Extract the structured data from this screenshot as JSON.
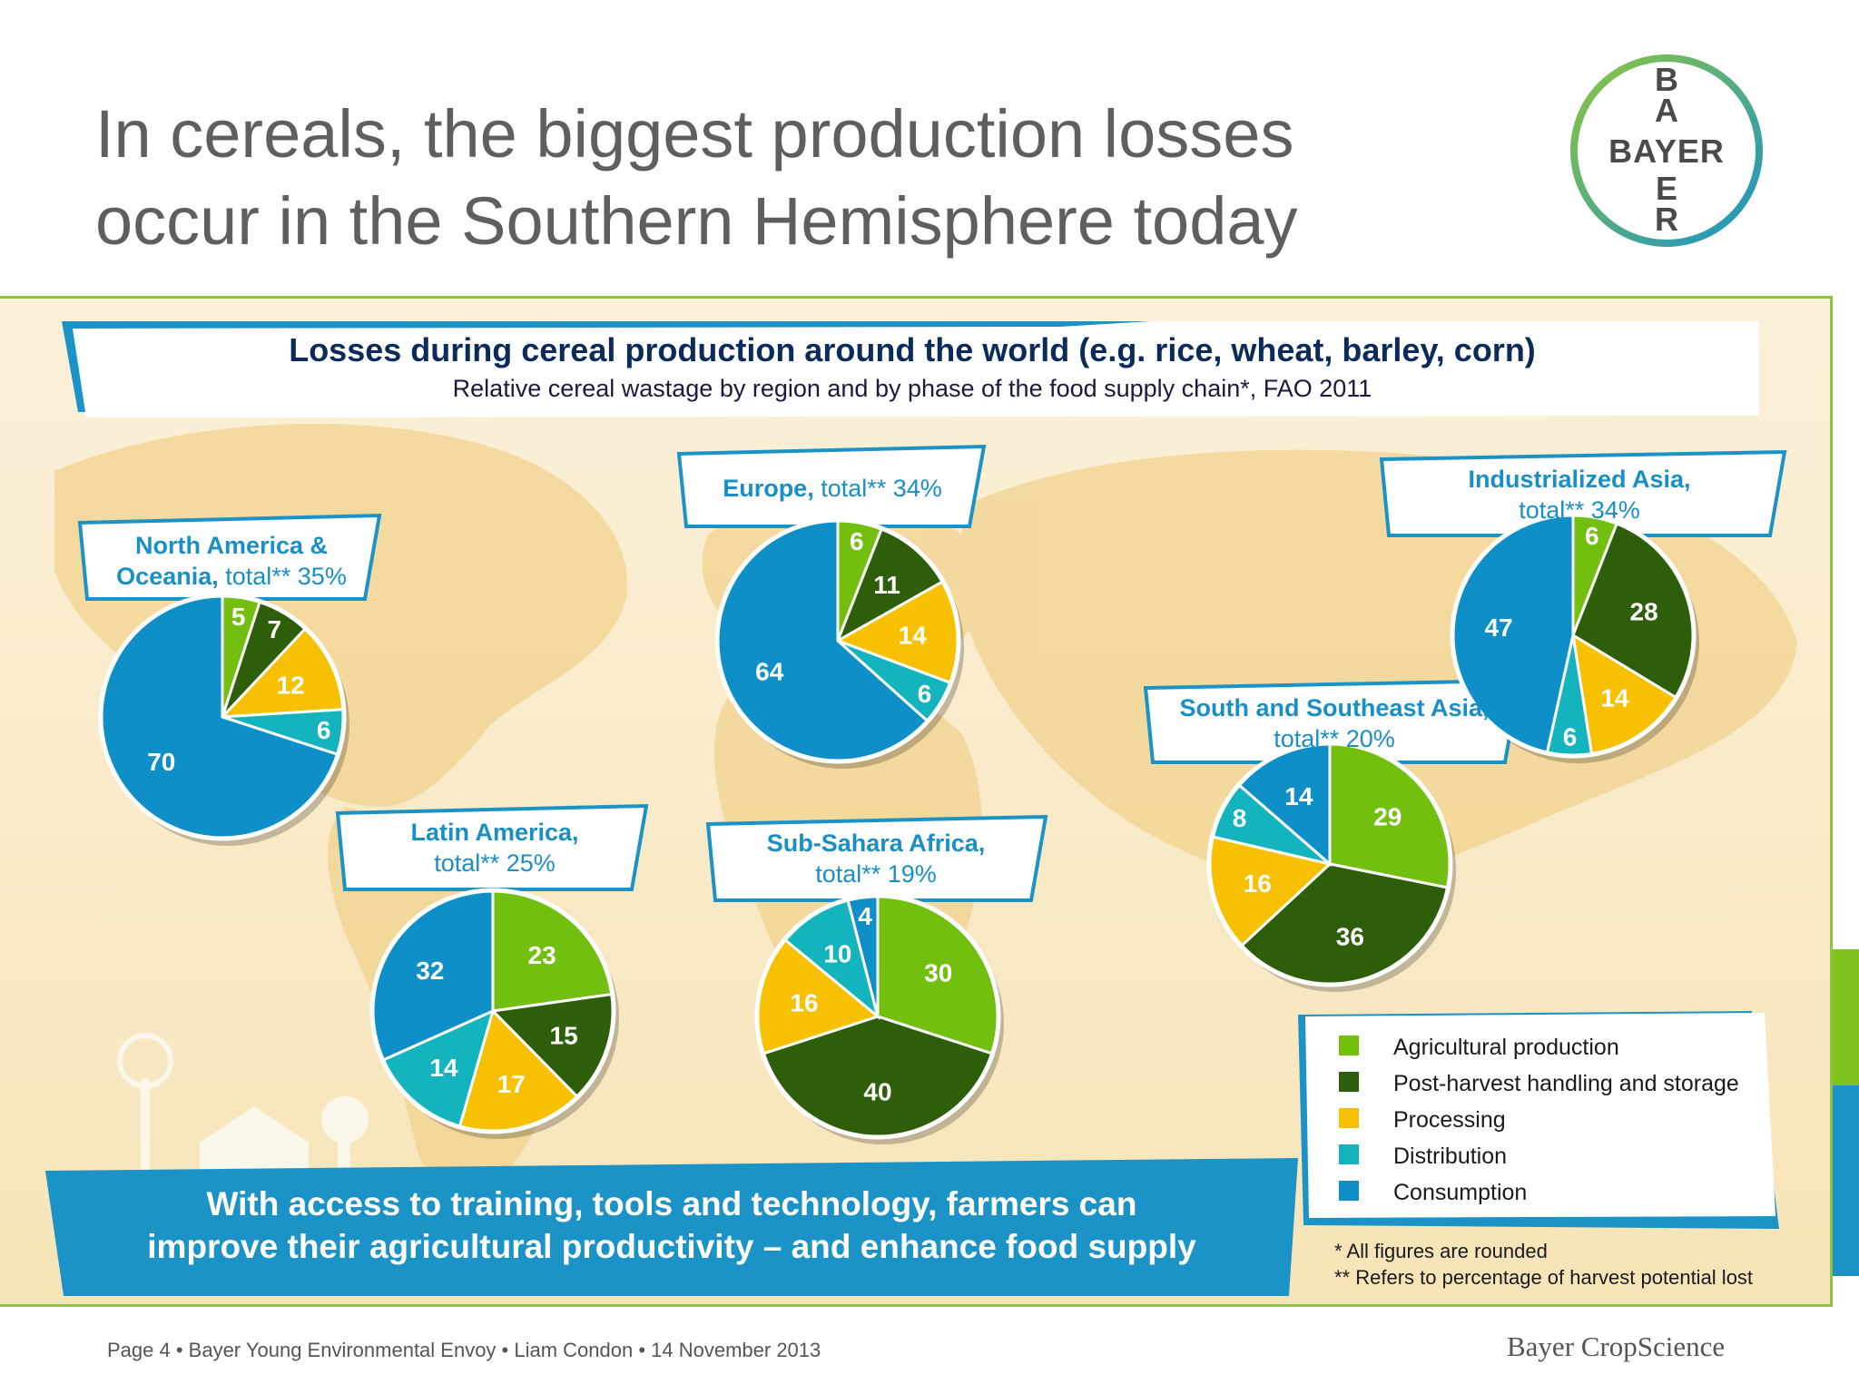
{
  "slide_title_line1": "In cereals, the biggest production losses",
  "slide_title_line2": "occur in the Southern Hemisphere today",
  "logo_text": "BAYER",
  "chart_data": {
    "type": "pie",
    "title": "Losses during cereal production around the world (e.g. rice, wheat, barley, corn)",
    "subtitle": "Relative cereal wastage by region and by phase of the food supply chain*, FAO 2011",
    "categories": [
      "Agricultural production",
      "Post-harvest handling and storage",
      "Processing",
      "Distribution",
      "Consumption"
    ],
    "colors": [
      "#72bf10",
      "#2e5e0a",
      "#f7c000",
      "#14b4bf",
      "#0e8fc8"
    ],
    "regions": [
      {
        "name": "North America &",
        "name2": "Oceania,",
        "total": " total** 35%",
        "values": [
          5,
          7,
          12,
          6,
          70
        ]
      },
      {
        "name": "Europe,",
        "name2": "",
        "total": " total** 34%",
        "values": [
          6,
          11,
          14,
          6,
          64
        ]
      },
      {
        "name": "Industrialized Asia,",
        "name2": "",
        "total": "total** 34%",
        "values": [
          6,
          28,
          14,
          6,
          47
        ]
      },
      {
        "name": "South and Southeast Asia,",
        "name2": "",
        "total": "total** 20%",
        "values": [
          29,
          36,
          16,
          8,
          14
        ]
      },
      {
        "name": "Latin America,",
        "name2": "",
        "total": "total** 25%",
        "values": [
          23,
          15,
          17,
          14,
          32
        ]
      },
      {
        "name": "Sub-Sahara Africa,",
        "name2": "",
        "total": "total** 19%",
        "values": [
          30,
          40,
          16,
          10,
          4
        ]
      }
    ]
  },
  "bottom_banner": {
    "line1": "With access to training, tools and technology, farmers can",
    "line2": "improve their agricultural productivity – and enhance food supply"
  },
  "footnotes": {
    "rounded": "* All figures are rounded",
    "harvest": "** Refers to percentage of harvest potential lost"
  },
  "footer": {
    "left": "Page 4 • Bayer Young Environmental Envoy • Liam Condon • 14 November 2013",
    "right": "Bayer CropScience"
  }
}
